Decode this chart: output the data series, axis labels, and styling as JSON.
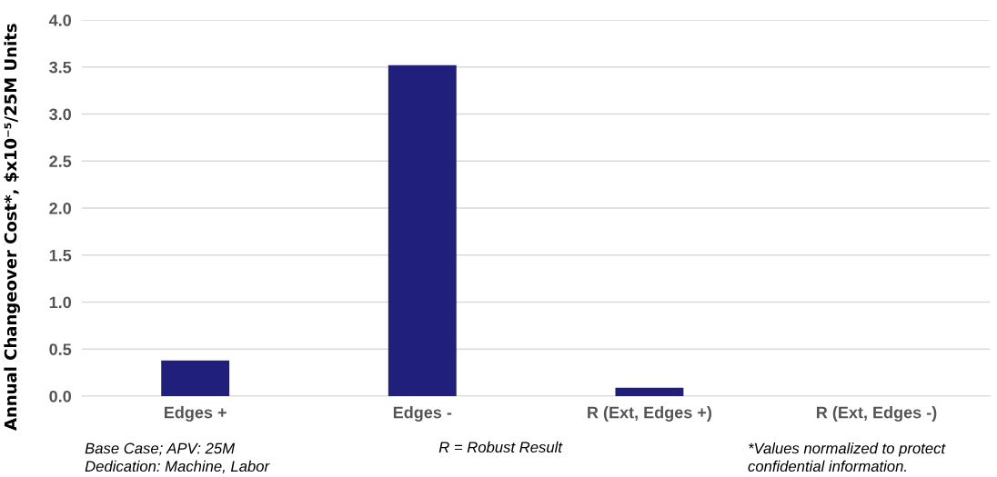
{
  "chart_data": {
    "type": "bar",
    "ylabel": "Annual Changeover Cost*, $x10⁻⁵/25M Units",
    "categories": [
      "Edges +",
      "Edges -",
      "R (Ext, Edges +)",
      "R (Ext, Edges -)"
    ],
    "values": [
      0.38,
      3.52,
      0.09,
      0
    ],
    "color": "#201f7c",
    "ylim": [
      0,
      4.0
    ],
    "yticks": [
      {
        "value": 0,
        "label": "0.0"
      },
      {
        "value": 0.5,
        "label": "0.5"
      },
      {
        "value": 1.0,
        "label": "1.0"
      },
      {
        "value": 1.5,
        "label": "1.5"
      },
      {
        "value": 2.0,
        "label": "2.0"
      },
      {
        "value": 2.5,
        "label": "2.5"
      },
      {
        "value": 3.0,
        "label": "3.0"
      },
      {
        "value": 3.5,
        "label": "3.5"
      },
      {
        "value": 4.0,
        "label": "4.0"
      }
    ],
    "grid": "y",
    "annotations": [
      "Base Case; APV: 25M\nDedication: Machine, Labor",
      "R = Robust Result",
      "*Values normalized to protect\nconfidential information."
    ]
  }
}
